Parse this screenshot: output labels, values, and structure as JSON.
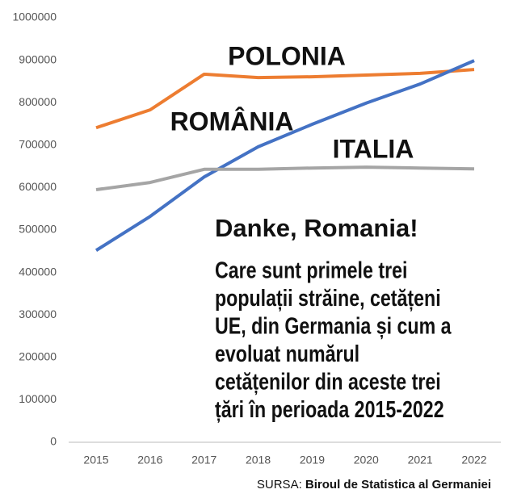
{
  "chart_data": {
    "type": "line",
    "title": "Danke, Romania!",
    "subtitle": [
      "Care sunt primele trei",
      "populații străine, cetățeni",
      "UE, din Germania și cum a",
      "evoluat numărul",
      "cetățenilor din aceste trei",
      "țări în perioada 2015-2022"
    ],
    "source_label": "SURSA:",
    "source": "Biroul de Statistica al Germaniei",
    "categories": [
      "2015",
      "2016",
      "2017",
      "2018",
      "2019",
      "2020",
      "2021",
      "2022"
    ],
    "series": [
      {
        "name": "POLONIA",
        "color": "#ed7d31",
        "values": [
          741000,
          783000,
          867000,
          859000,
          861000,
          865000,
          869000,
          878000
        ]
      },
      {
        "name": "ROMÂNIA",
        "color": "#4472c4",
        "values": [
          452000,
          532000,
          625000,
          696000,
          749000,
          799000,
          844000,
          899000
        ]
      },
      {
        "name": "ITALIA",
        "color": "#a5a5a5",
        "values": [
          595000,
          612000,
          643000,
          643000,
          646000,
          648000,
          646000,
          644000
        ]
      }
    ],
    "ylim": [
      0,
      1000000
    ],
    "yticks": [
      0,
      100000,
      200000,
      300000,
      400000,
      500000,
      600000,
      700000,
      800000,
      900000,
      1000000
    ],
    "grid": false
  }
}
